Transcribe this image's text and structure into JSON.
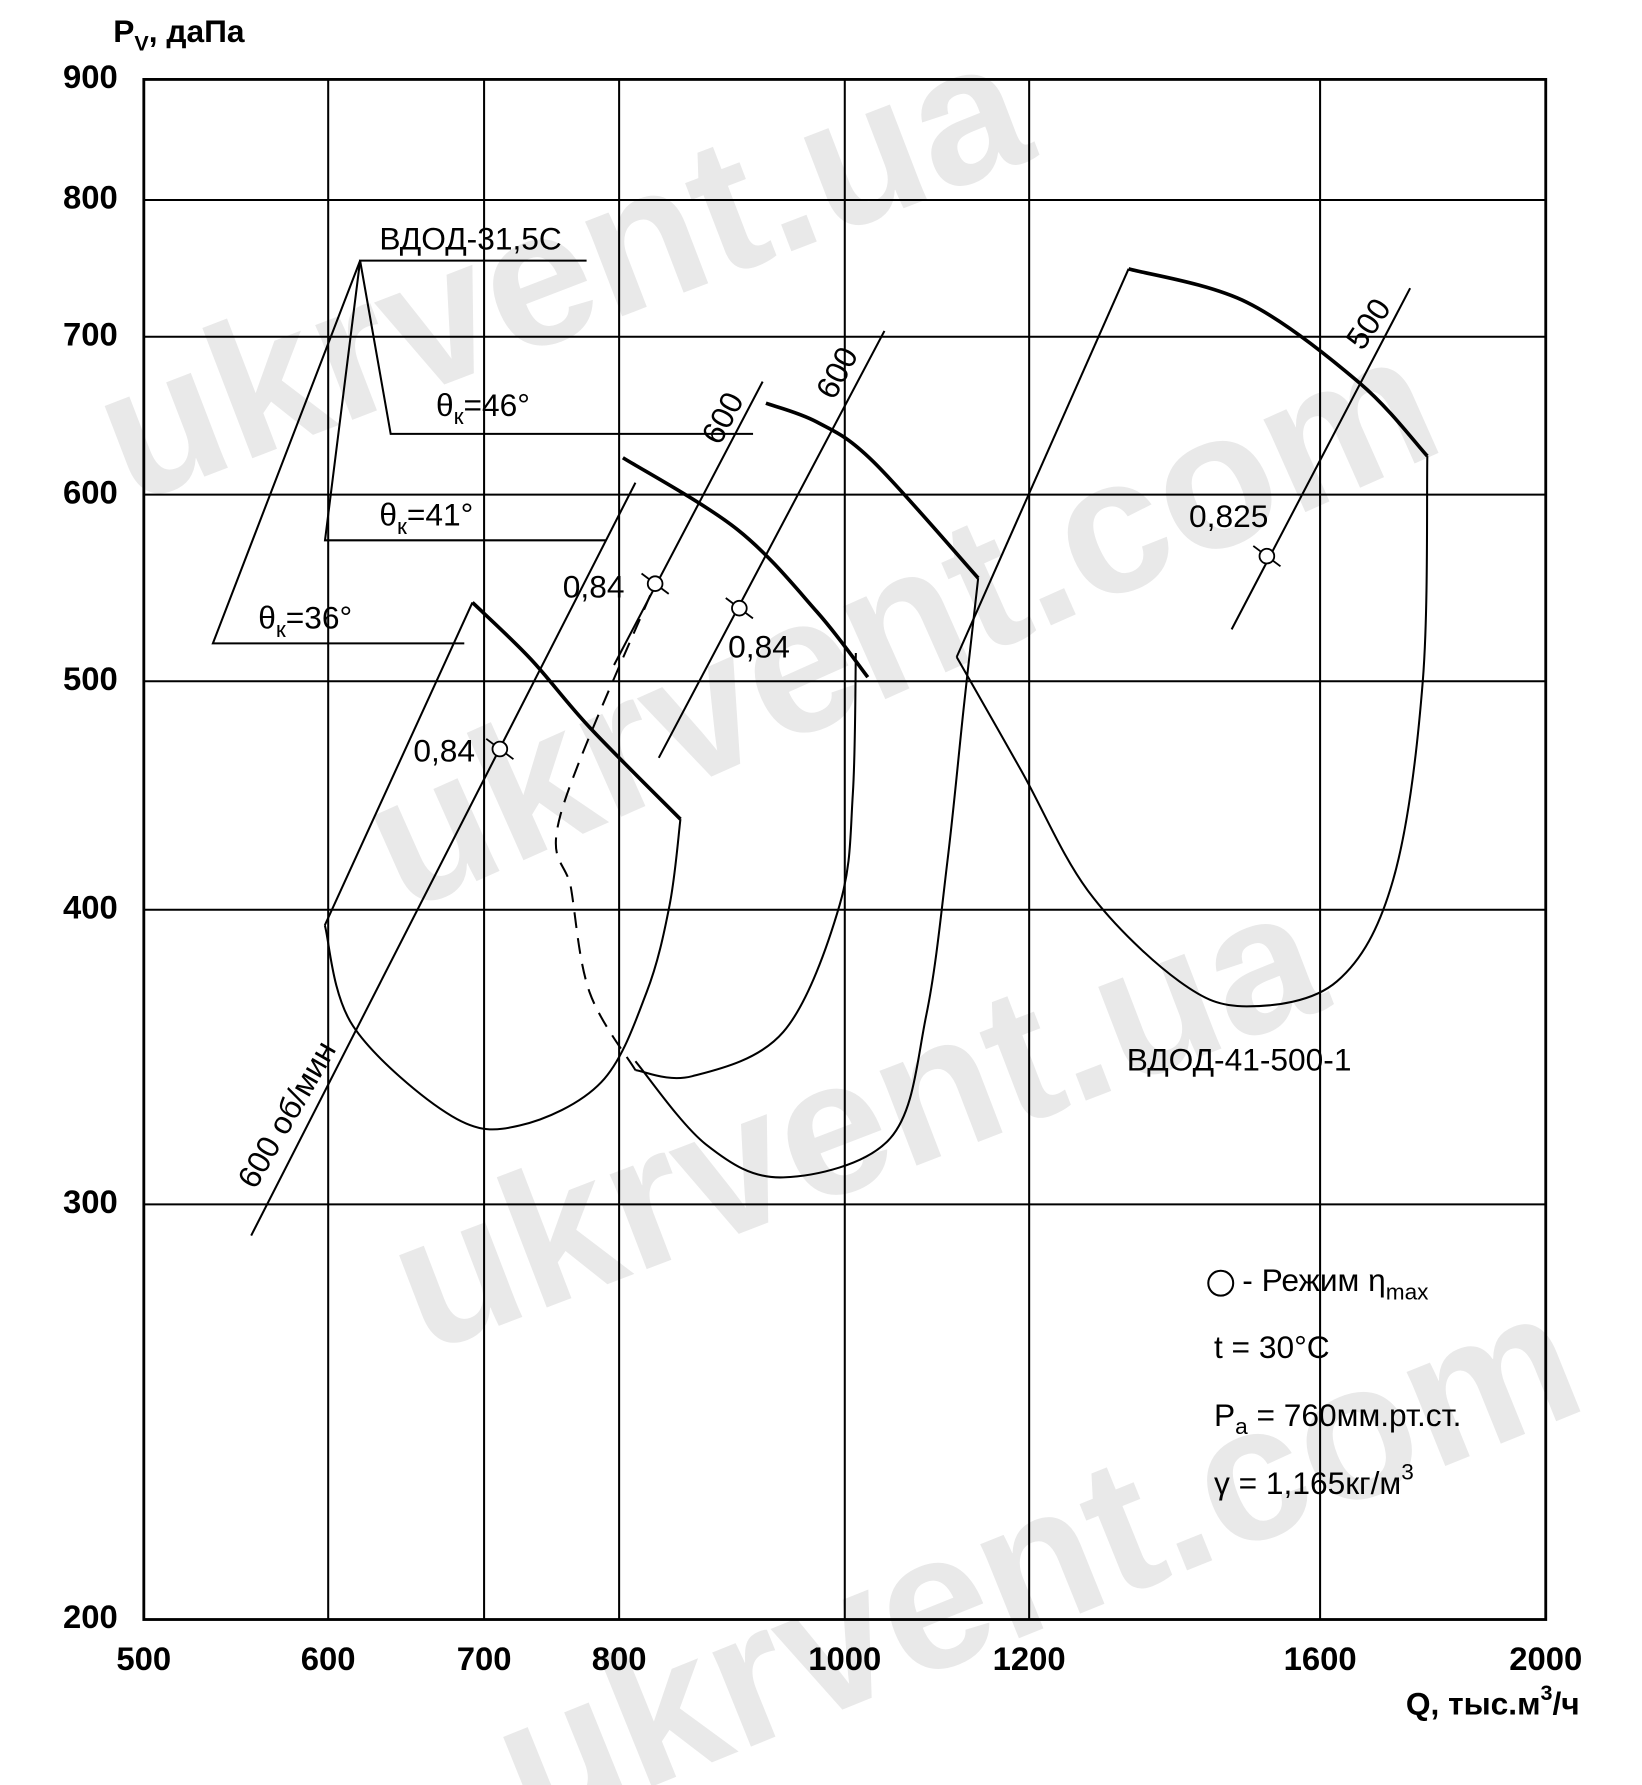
{
  "chart_data": {
    "type": "line",
    "y_label": {
      "main": "P",
      "sub": "V",
      "rest": ", даПа"
    },
    "x_label": {
      "main": "Q, тыс.м",
      "sup": "3",
      "rest": "/ч"
    },
    "log_x": true,
    "log_y": true,
    "grid": true,
    "xlim": [
      500,
      2000
    ],
    "xticks": [
      500,
      600,
      700,
      800,
      1000,
      1200,
      1600,
      2000
    ],
    "ylim": [
      200,
      900
    ],
    "yticks": [
      200,
      300,
      400,
      500,
      600,
      700,
      800,
      900
    ],
    "color": "#000000",
    "series": [
      {
        "style": "thick",
        "smooth": true,
        "x": [
          692,
          733,
          777,
          850
        ],
        "y": [
          540,
          511,
          478,
          437
        ]
      },
      {
        "style": "thin",
        "smooth": false,
        "x": [
          692,
          598
        ],
        "y": [
          540,
          394
        ]
      },
      {
        "style": "thin",
        "smooth": true,
        "x": [
          598,
          615,
          678,
          725,
          786,
          822,
          841,
          850
        ],
        "y": [
          394,
          357,
          327,
          324,
          338,
          369,
          402,
          437
        ]
      },
      {
        "style": "thick",
        "smooth": true,
        "x": [
          803,
          899,
          973,
          1023
        ],
        "y": [
          622,
          580,
          535,
          502
        ]
      },
      {
        "style": "thin",
        "smooth": true,
        "x": [
          813,
          860,
          941,
          995,
          1008,
          1011
        ],
        "y": [
          342,
          340,
          355,
          402,
          448,
          514
        ]
      },
      {
        "style": "thick",
        "smooth": true,
        "x": [
          925,
          973,
          1028,
          1141
        ],
        "y": [
          656,
          644,
          620,
          553
        ]
      },
      {
        "style": "thin",
        "smooth": true,
        "x": [
          1141,
          1125,
          1107,
          1084,
          1046,
          941,
          872,
          813
        ],
        "y": [
          553,
          488,
          420,
          361,
          320,
          308,
          318,
          345
        ]
      },
      {
        "style": "dashed",
        "smooth": true,
        "x": [
          813,
          777,
          763,
          755,
          827
        ],
        "y": [
          342,
          369,
          408,
          439,
          547
        ]
      },
      {
        "style": "thick",
        "smooth": true,
        "x": [
          1324,
          1488,
          1664,
          1779
        ],
        "y": [
          748,
          724,
          669,
          623
        ]
      },
      {
        "style": "thin",
        "smooth": false,
        "x": [
          1324,
          1117
        ],
        "y": [
          748,
          512
        ]
      },
      {
        "style": "thin",
        "smooth": true,
        "x": [
          1117,
          1191,
          1273,
          1392,
          1488,
          1627,
          1720,
          1771,
          1779
        ],
        "y": [
          512,
          458,
          407,
          373,
          364,
          373,
          412,
          500,
          623
        ]
      }
    ],
    "speed_lines": [
      {
        "label": "600 об/мин",
        "x": [
          556,
          813
        ],
        "y": [
          291,
          607
        ]
      },
      {
        "label": "600",
        "x": [
          796,
          922
        ],
        "y": [
          508,
          670
        ]
      },
      {
        "label": "600",
        "x": [
          832,
          1040
        ],
        "y": [
          464,
          704
        ]
      },
      {
        "label": "500",
        "x": [
          1466,
          1749
        ],
        "y": [
          526,
          734
        ]
      }
    ],
    "markers": {
      "x": [
        711,
        829,
        901,
        1518
      ],
      "y": [
        468,
        550,
        537,
        565
      ],
      "labels": [
        "0,84",
        "0,84",
        "0,84",
        "0,825"
      ]
    },
    "fan_labels": [
      "ВДОД-31,5С",
      "ВДОД-41-500-1"
    ],
    "angle_labels": [
      {
        "main": "θ",
        "sub": "к",
        "rest": "=46°"
      },
      {
        "main": "θ",
        "sub": "к",
        "rest": "=41°"
      },
      {
        "main": "θ",
        "sub": "к",
        "rest": "=36°"
      }
    ],
    "notes": [
      {
        "main": "- Режим η",
        "sub": "max"
      },
      {
        "main": "t = 30°C"
      },
      {
        "main": "P",
        "sub": "a",
        "rest": " = 760мм.рт.ст."
      },
      {
        "main": "γ = 1,165кг/м",
        "sup": "3"
      }
    ],
    "watermarks": [
      "ukrvent.ua",
      "ukrvent.com",
      "ukrvent.ua",
      "ukrvent.com"
    ]
  }
}
